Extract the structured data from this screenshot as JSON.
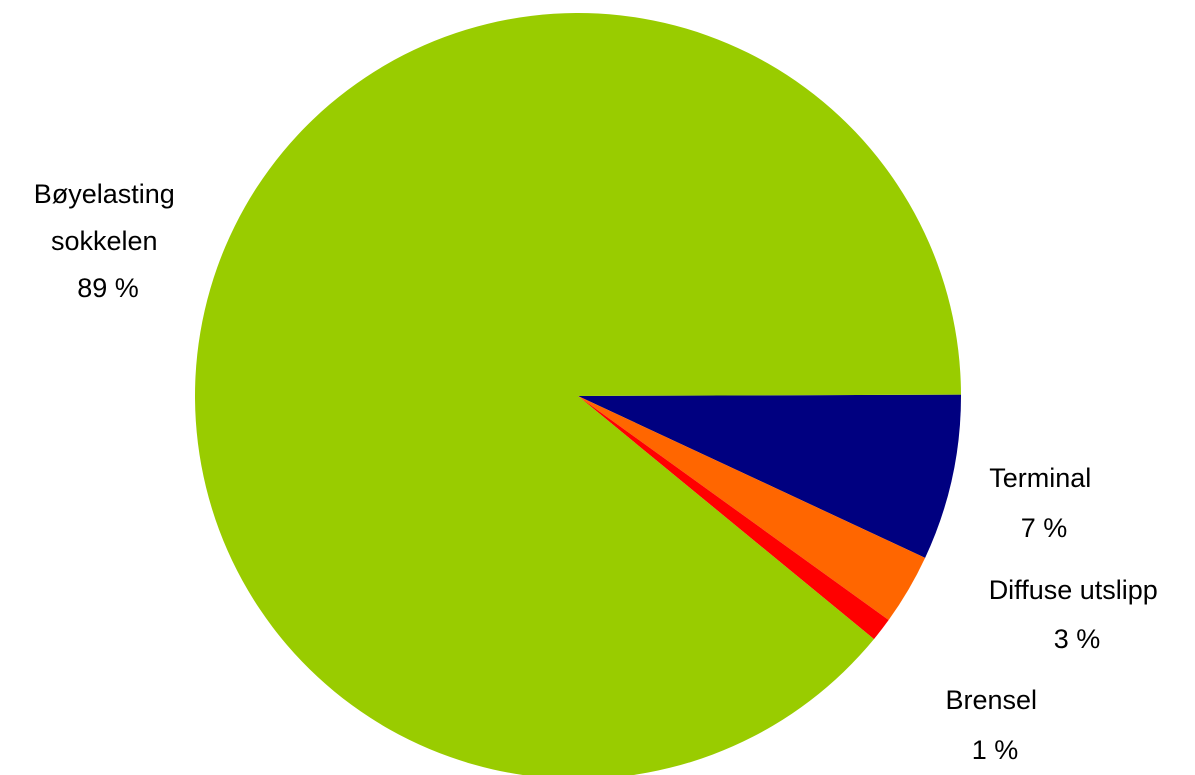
{
  "chart_data": {
    "type": "pie",
    "title": "",
    "slices": [
      {
        "name": "Terminal",
        "value": 7,
        "value_label": "7 %",
        "color": "#000080"
      },
      {
        "name": "Diffuse utslipp",
        "value": 3,
        "value_label": "3 %",
        "color": "#FF6600"
      },
      {
        "name": "Brensel",
        "value": 1,
        "value_label": "1 %",
        "color": "#FF0000"
      },
      {
        "name": "Bøyelasting sokkelen",
        "value": 89,
        "value_label": "89 %",
        "color": "#99CC00"
      }
    ],
    "legend": "none",
    "labels": "outside slices"
  }
}
